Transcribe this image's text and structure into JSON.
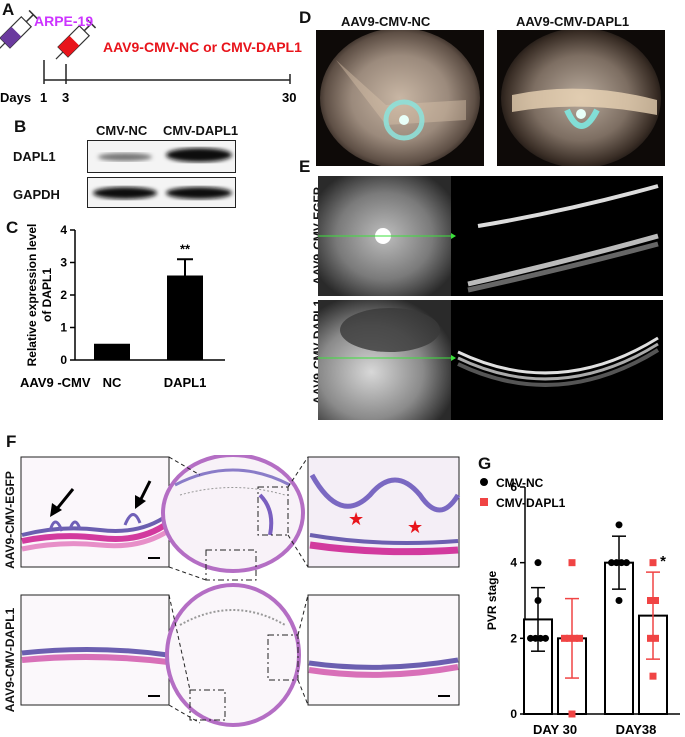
{
  "panels": {
    "a": "A",
    "b": "B",
    "c": "C",
    "d": "D",
    "e": "E",
    "f": "F",
    "g": "G"
  },
  "panel_a": {
    "cell_line": "ARPE-19",
    "treatment": "AAV9-CMV-NC or CMV-DAPL1",
    "days_label": "Days",
    "day_ticks": [
      "1",
      "3",
      "30"
    ],
    "colors": {
      "cell_line": "#cc33ff",
      "treatment": "#e8141b",
      "syringe1": "#6a3a9e",
      "syringe2": "#e8141b"
    }
  },
  "panel_b": {
    "col_headers": [
      "CMV-NC",
      "CMV-DAPL1"
    ],
    "row_labels": [
      "DAPL1",
      "GAPDH"
    ]
  },
  "panel_d": {
    "titles": [
      "AAV9-CMV-NC",
      "AAV9-CMV-DAPL1"
    ]
  },
  "panel_e": {
    "row_labels": [
      "AAV9-CMV-EGFP",
      "AAV9-CMV-DAPL1"
    ]
  },
  "panel_f": {
    "row_labels": [
      "AAV9-CMV-EGFP",
      "AAV9-CMV-DAPL1"
    ]
  },
  "chart_data": [
    {
      "type": "bar",
      "ylabel": "Relative expression level of DAPL1",
      "xlabel": "AAV9 -CMV",
      "categories": [
        "NC",
        "DAPL1"
      ],
      "values": [
        0.5,
        2.6
      ],
      "error": [
        0,
        0.5
      ],
      "ylim": [
        0,
        4
      ],
      "yticks": [
        "0",
        "1",
        "2",
        "3",
        "4"
      ],
      "significance": [
        "",
        "**"
      ],
      "color": "#000000"
    },
    {
      "type": "bar",
      "ylabel": "PVR stage",
      "categories": [
        "DAY 30",
        "DAY38"
      ],
      "ylim": [
        0,
        6
      ],
      "yticks": [
        "0",
        "2",
        "4",
        "6"
      ],
      "legend_position": "top-left",
      "significance": [
        "",
        "*"
      ],
      "series": [
        {
          "name": "CMV-NC",
          "color": "#000000",
          "marker": "circle",
          "values": [
            2.5,
            4.0
          ],
          "error": [
            0.84,
            0.7
          ],
          "points": [
            [
              2,
              2,
              2,
              2,
              3,
              4
            ],
            [
              3,
              4,
              4,
              4,
              4,
              5
            ]
          ]
        },
        {
          "name": "CMV-DAPL1",
          "color": "#f04444",
          "marker": "square",
          "values": [
            2.0,
            2.6
          ],
          "error": [
            1.05,
            1.15
          ],
          "points": [
            [
              0,
              2,
              2,
              2,
              2,
              4
            ],
            [
              1,
              2,
              2,
              3,
              3,
              4
            ]
          ]
        }
      ]
    }
  ]
}
